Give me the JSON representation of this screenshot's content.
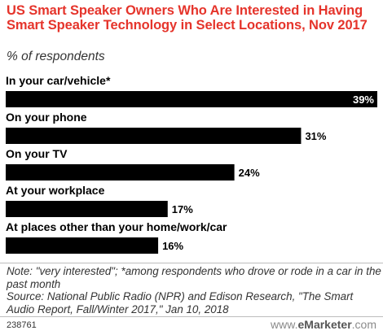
{
  "chart_data": {
    "type": "bar",
    "orientation": "horizontal",
    "title": "US Smart Speaker Owners Who Are Interested in Having Smart Speaker Technology in Select Locations, Nov 2017",
    "subtitle": "% of respondents",
    "categories": [
      "In your car/vehicle*",
      "On your phone",
      "On your TV",
      "At your workplace",
      "At places other than your home/work/car"
    ],
    "values": [
      39,
      31,
      24,
      17,
      16
    ],
    "value_labels": [
      "39%",
      "31%",
      "24%",
      "17%",
      "16%"
    ],
    "xlim": [
      0,
      39
    ],
    "bar_color": "#000000",
    "grid": false,
    "legend": "none"
  },
  "footer": {
    "note": "Note: \"very interested\"; *among respondents who drove or rode in a car in the past month",
    "source": "Source: National Public Radio (NPR) and Edison Research, \"The Smart Audio Report, Fall/Winter 2017,\" Jan 10, 2018",
    "chart_id": "238761",
    "brand_prefix": "www.",
    "brand_name": "eMarketer",
    "brand_suffix": ".com"
  },
  "colors": {
    "title": "#e5342b",
    "bar": "#000000",
    "label_inside": "#ffffff",
    "label_outside": "#000000"
  }
}
